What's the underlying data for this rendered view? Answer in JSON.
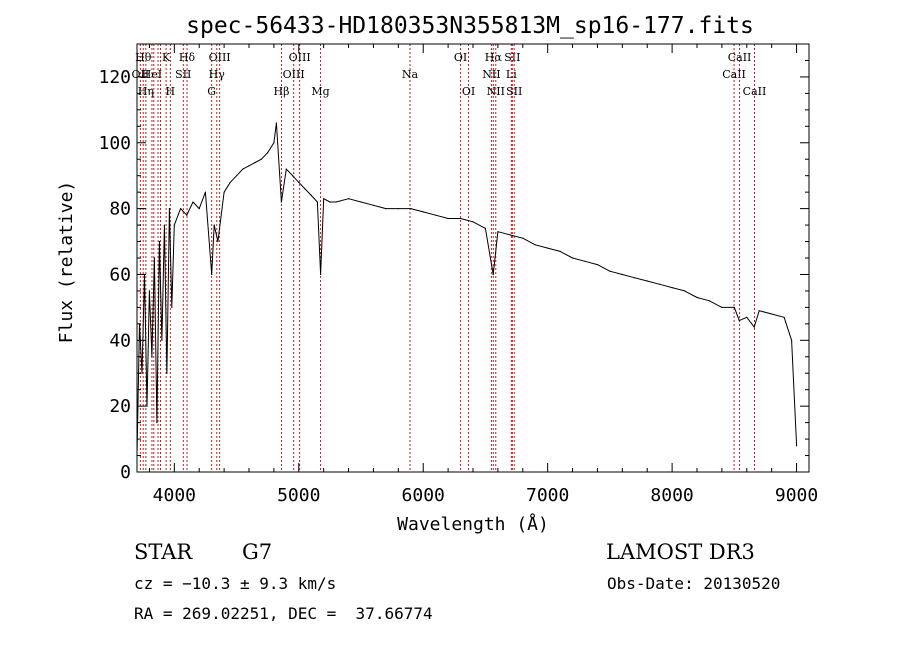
{
  "chart_data": {
    "type": "line",
    "title": "spec-56433-HD180353N355813M_sp16-177.fits",
    "xlabel": "Wavelength (Å)",
    "ylabel": "Flux (relative)",
    "xlim": [
      3700,
      9100
    ],
    "ylim": [
      0,
      130
    ],
    "xticks": [
      4000,
      5000,
      6000,
      7000,
      8000,
      9000
    ],
    "xtick_labels": [
      "4000",
      "5000",
      "6000",
      "7000",
      "8000",
      "9000"
    ],
    "yticks": [
      0,
      20,
      40,
      60,
      80,
      100,
      120
    ],
    "ytick_labels": [
      "0",
      "20",
      "40",
      "60",
      "80",
      "100",
      "120"
    ],
    "grid": false,
    "line_color": "#000000",
    "marker_color": "#b22222",
    "series": [
      {
        "x": [
          3700,
          3720,
          3740,
          3760,
          3780,
          3800,
          3820,
          3840,
          3860,
          3880,
          3900,
          3920,
          3940,
          3960,
          3980,
          4000,
          4050,
          4100,
          4150,
          4200,
          4250,
          4300,
          4320,
          4350,
          4400,
          4450,
          4500,
          4550,
          4600,
          4650,
          4700,
          4750,
          4800,
          4820,
          4860,
          4900,
          4950,
          5000,
          5050,
          5100,
          5150,
          5175,
          5200,
          5250,
          5300,
          5400,
          5500,
          5600,
          5700,
          5800,
          5900,
          6000,
          6100,
          6200,
          6300,
          6400,
          6500,
          6562,
          6600,
          6700,
          6800,
          6900,
          7000,
          7100,
          7200,
          7300,
          7400,
          7500,
          7600,
          7700,
          7800,
          7900,
          8000,
          8100,
          8200,
          8300,
          8400,
          8500,
          8540,
          8600,
          8660,
          8700,
          8800,
          8900,
          8960,
          9000
        ],
        "y": [
          5,
          45,
          30,
          60,
          20,
          55,
          35,
          65,
          15,
          70,
          40,
          75,
          30,
          80,
          50,
          75,
          80,
          78,
          82,
          80,
          85,
          60,
          75,
          70,
          85,
          88,
          90,
          92,
          93,
          94,
          95,
          97,
          100,
          106,
          82,
          92,
          90,
          88,
          86,
          84,
          82,
          60,
          83,
          82,
          82,
          83,
          82,
          81,
          80,
          80,
          80,
          79,
          78,
          77,
          77,
          76,
          74,
          60,
          73,
          72,
          71,
          69,
          68,
          67,
          65,
          64,
          63,
          61,
          60,
          59,
          58,
          57,
          56,
          55,
          53,
          52,
          50,
          50,
          46,
          47,
          44,
          49,
          48,
          47,
          40,
          8
        ]
      }
    ],
    "markers": [
      {
        "x": 3727,
        "label": "OII",
        "row": 2
      },
      {
        "x": 3750,
        "label": "Hθ",
        "row": 1
      },
      {
        "x": 3771,
        "label": "Hη",
        "row": 3
      },
      {
        "x": 3820,
        "label": "HeI",
        "row": 2
      },
      {
        "x": 3835,
        "label": "",
        "row": 0
      },
      {
        "x": 3869,
        "label": "",
        "row": 0
      },
      {
        "x": 3889,
        "label": "",
        "row": 0
      },
      {
        "x": 3934,
        "label": "K",
        "row": 1
      },
      {
        "x": 3968,
        "label": "H",
        "row": 3
      },
      {
        "x": 4072,
        "label": "SII",
        "row": 2
      },
      {
        "x": 4102,
        "label": "Hδ",
        "row": 1
      },
      {
        "x": 4300,
        "label": "G",
        "row": 3
      },
      {
        "x": 4341,
        "label": "Hγ",
        "row": 2
      },
      {
        "x": 4364,
        "label": "OIII",
        "row": 1
      },
      {
        "x": 4861,
        "label": "Hβ",
        "row": 3
      },
      {
        "x": 4959,
        "label": "OIII",
        "row": 2
      },
      {
        "x": 5007,
        "label": "OIII",
        "row": 1
      },
      {
        "x": 5175,
        "label": "Mg",
        "row": 3
      },
      {
        "x": 5894,
        "label": "Na",
        "row": 2
      },
      {
        "x": 6300,
        "label": "OI",
        "row": 1
      },
      {
        "x": 6364,
        "label": "OI",
        "row": 3
      },
      {
        "x": 6548,
        "label": "NII",
        "row": 2
      },
      {
        "x": 6563,
        "label": "Hα",
        "row": 1
      },
      {
        "x": 6583,
        "label": "NII",
        "row": 3
      },
      {
        "x": 6708,
        "label": "Li",
        "row": 2
      },
      {
        "x": 6716,
        "label": "SII",
        "row": 1
      },
      {
        "x": 6731,
        "label": "SII",
        "row": 3
      },
      {
        "x": 8498,
        "label": "CaII",
        "row": 2
      },
      {
        "x": 8542,
        "label": "CaII",
        "row": 1
      },
      {
        "x": 8662,
        "label": "CaII",
        "row": 3
      }
    ]
  },
  "info": {
    "object_class": "STAR",
    "subclass": "G7",
    "survey": "LAMOST DR3",
    "redshift": "cz = −10.3 ± 9.3 km/s",
    "obs_date": "Obs-Date: 20130520",
    "coords": "RA = 269.02251, DEC =  37.66774"
  }
}
